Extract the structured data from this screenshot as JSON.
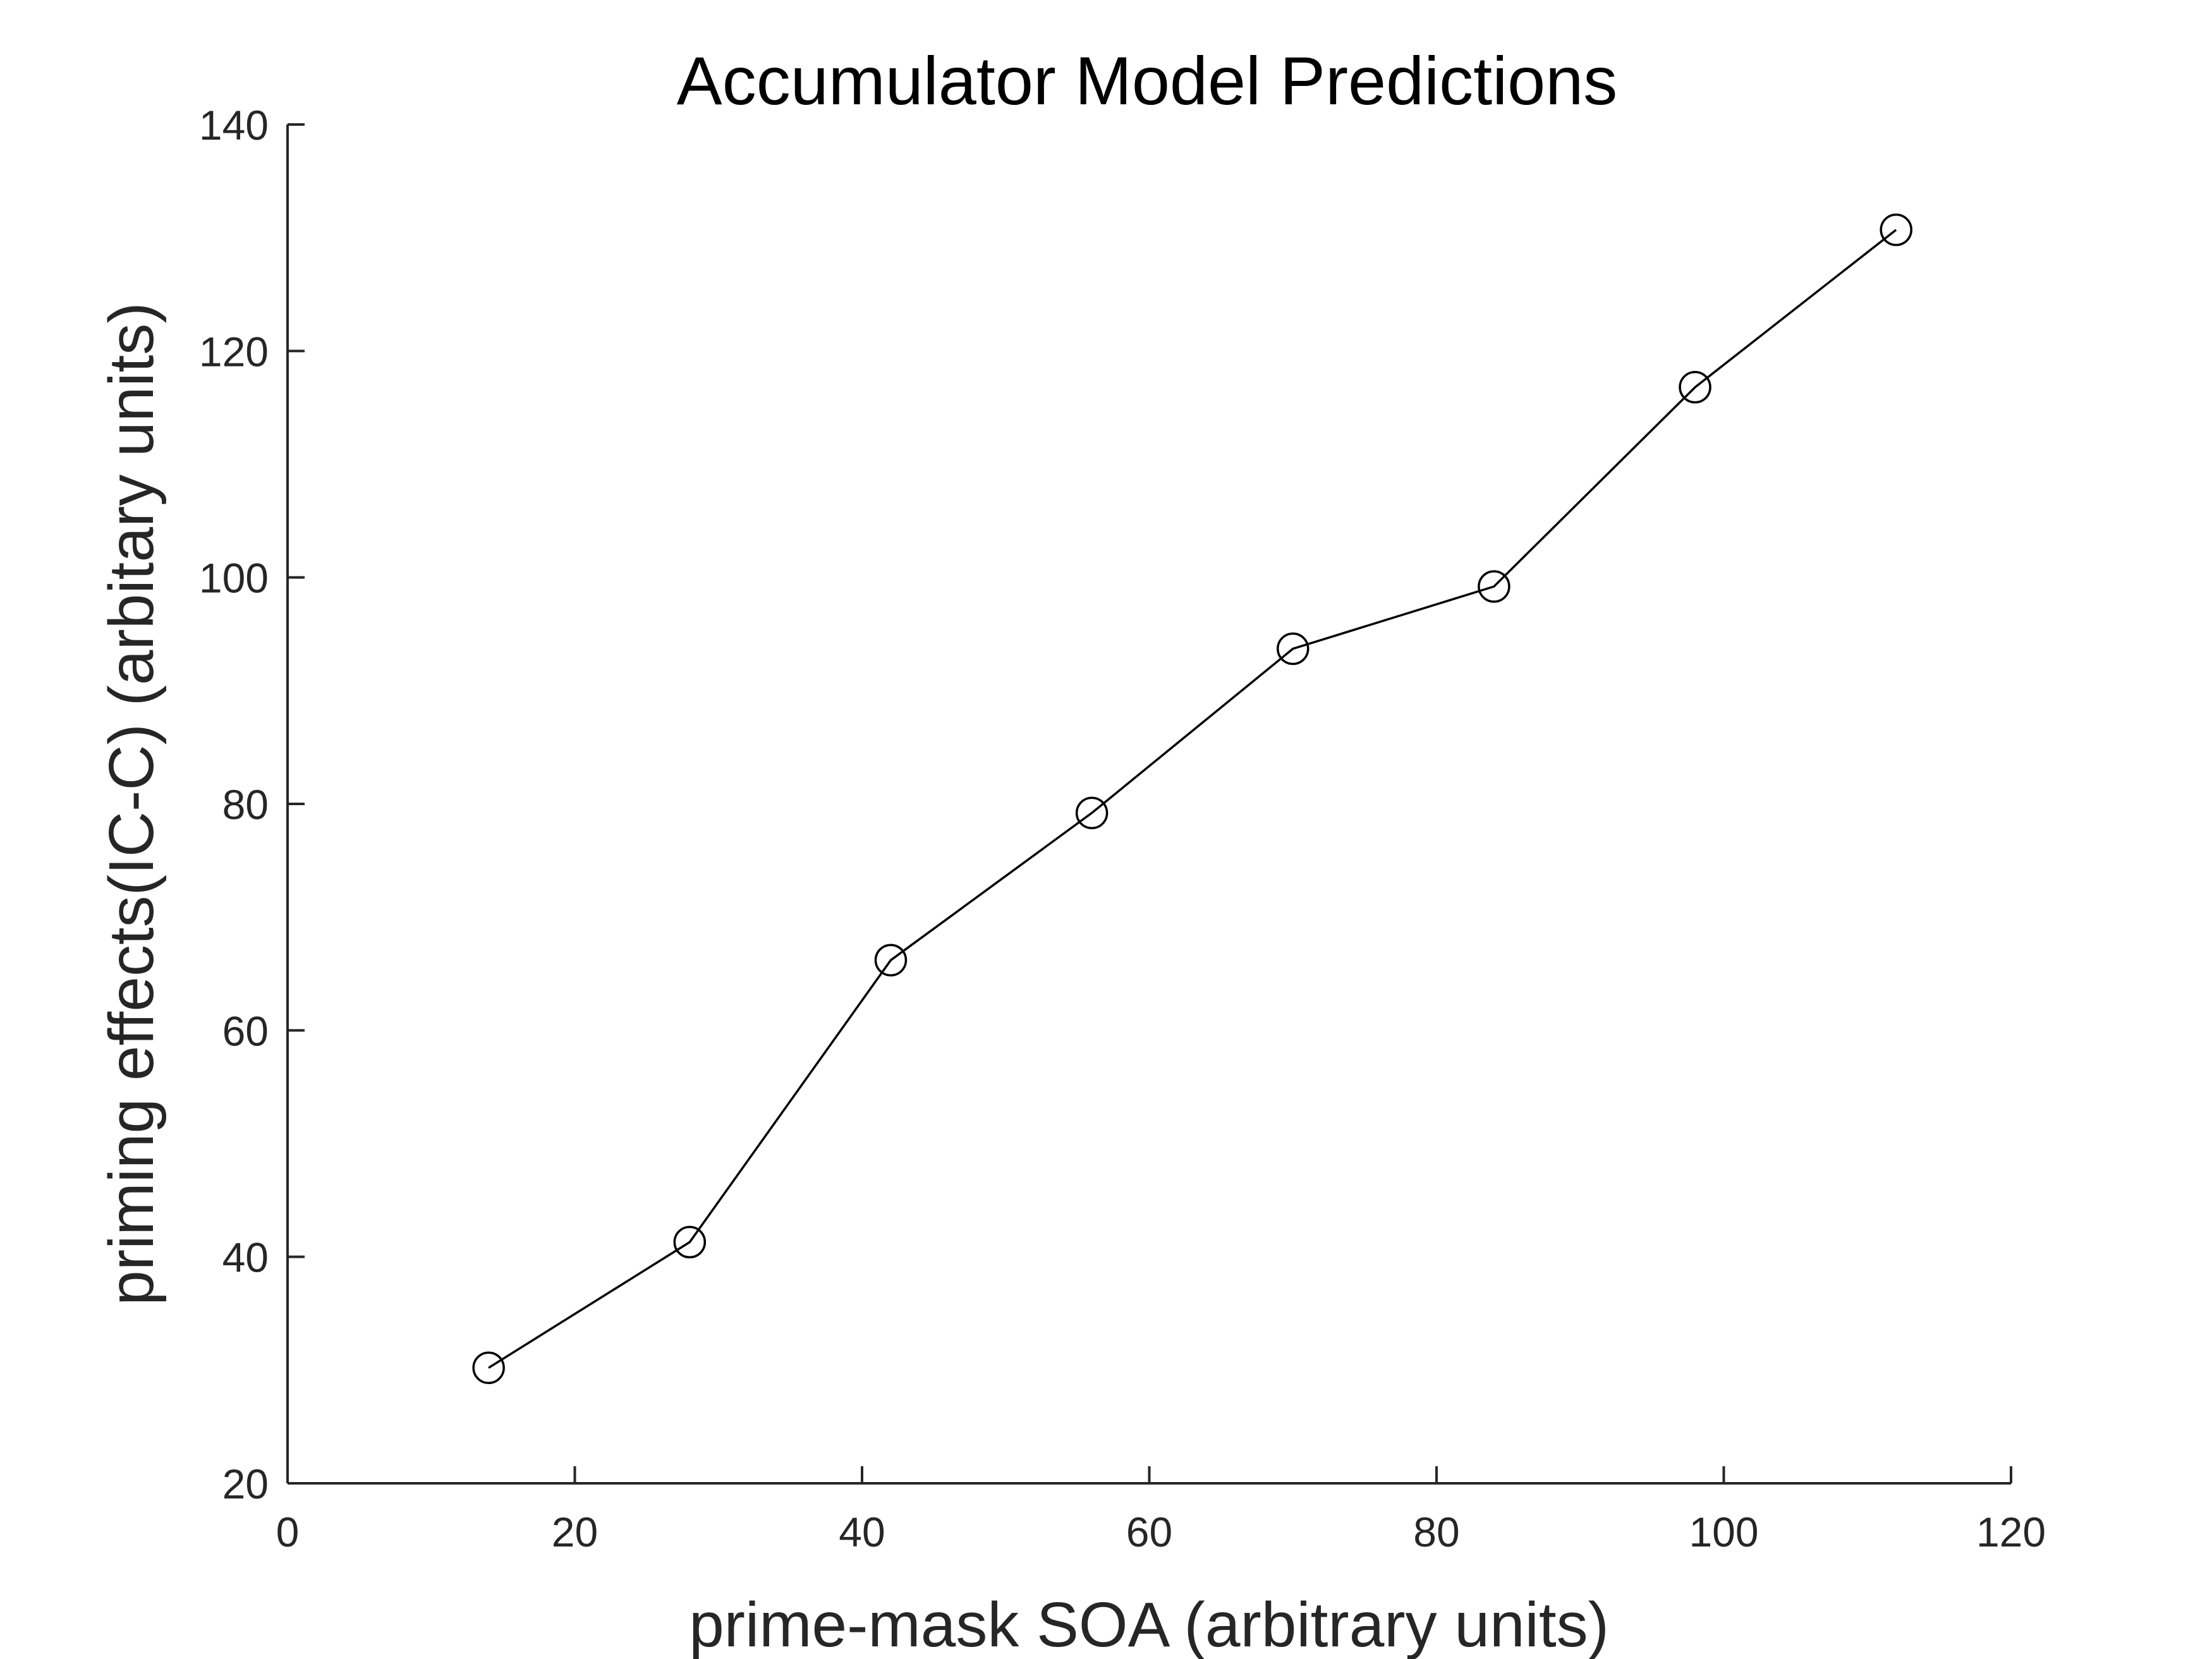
{
  "chart_data": {
    "type": "line",
    "title": "Accumulator Model Predictions",
    "xlabel": "prime-mask SOA (arbitrary units)",
    "ylabel": "priming effects(IC-C) (arbitary units)",
    "xlim": [
      0,
      120
    ],
    "ylim": [
      20,
      140
    ],
    "xticks": [
      0,
      20,
      40,
      60,
      80,
      100,
      120
    ],
    "yticks": [
      20,
      40,
      60,
      80,
      100,
      120,
      140
    ],
    "grid": false,
    "legend": "none",
    "marker": "circle",
    "line_color": "#000000",
    "series": [
      {
        "x": [
          14,
          28,
          42,
          56,
          70,
          84,
          98,
          112
        ],
        "values": [
          30.2,
          41.3,
          66.2,
          79.2,
          93.7,
          99.2,
          116.8,
          130.7
        ]
      }
    ]
  }
}
